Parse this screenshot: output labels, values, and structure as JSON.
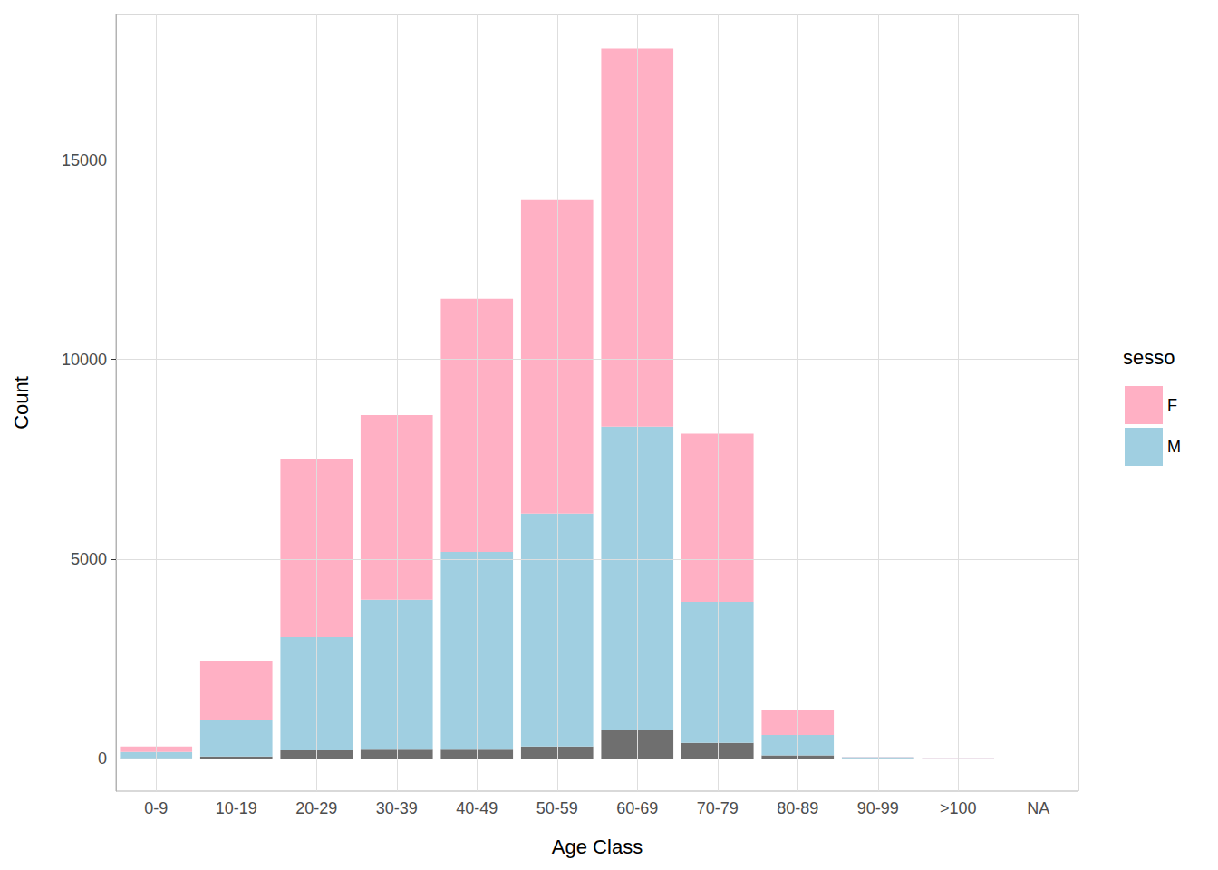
{
  "chart_data": {
    "type": "bar",
    "xlabel": "Age Class",
    "ylabel": "Count",
    "legend_title": "sesso",
    "categories": [
      "0-9",
      "10-19",
      "20-29",
      "30-39",
      "40-49",
      "50-59",
      "60-69",
      "70-79",
      "80-89",
      "90-99",
      ">100",
      "NA"
    ],
    "series": [
      {
        "name": "F",
        "color": "#ffb0c4",
        "values": [
          140,
          1500,
          4475,
          4630,
          6340,
          7860,
          9480,
          4210,
          610,
          10,
          7,
          0
        ]
      },
      {
        "name": "M",
        "color": "#a0cfe1",
        "values": [
          155,
          900,
          2845,
          3760,
          4960,
          5840,
          7600,
          3540,
          510,
          25,
          3,
          0
        ]
      },
      {
        "name": null,
        "color": "#6f6f6f",
        "values": [
          5,
          50,
          200,
          220,
          220,
          300,
          720,
          390,
          80,
          5,
          0,
          0
        ]
      }
    ],
    "ylim": [
      -820,
      18650
    ],
    "yticks": [
      0,
      5000,
      10000,
      15000
    ],
    "stacked": true,
    "grid": true,
    "legend": "right"
  }
}
